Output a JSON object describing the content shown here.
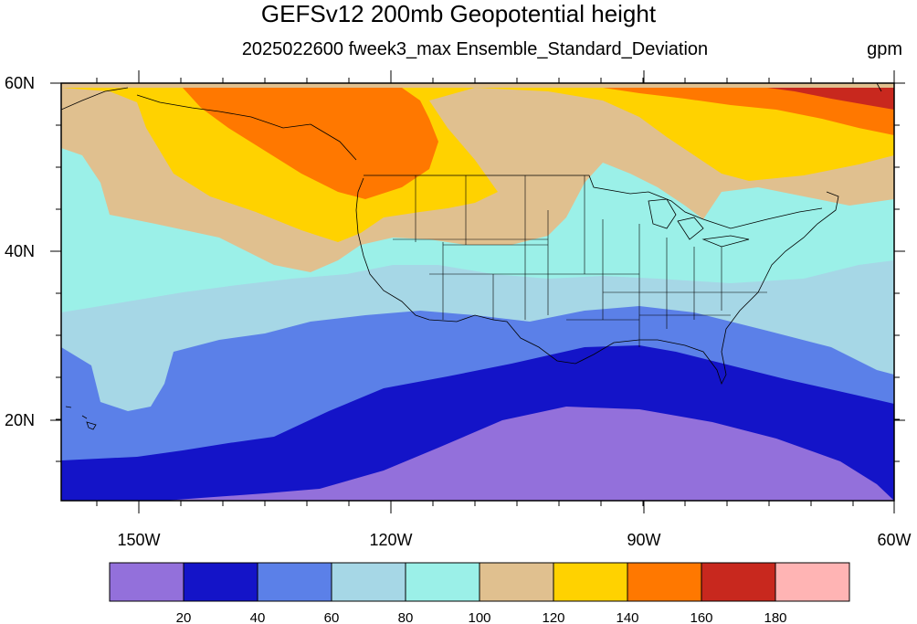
{
  "header": {
    "title": "GEFSv12 200mb Geopotential height",
    "subtitle": "2025022600 fweek3_max Ensemble_Standard_Deviation",
    "units": "gpm"
  },
  "axes": {
    "lon_labels": [
      "150W",
      "120W",
      "90W",
      "60W"
    ],
    "lat_labels": [
      "60N",
      "40N",
      "20N"
    ]
  },
  "colorbar": {
    "colors": [
      "#9370db",
      "#1414c8",
      "#5b80e8",
      "#a6d7e6",
      "#9bf0e8",
      "#e0c08f",
      "#ffd200",
      "#ff7800",
      "#c8281e",
      "#ffb4b4"
    ],
    "labels": [
      "20",
      "40",
      "60",
      "80",
      "100",
      "120",
      "140",
      "160",
      "180"
    ]
  }
}
